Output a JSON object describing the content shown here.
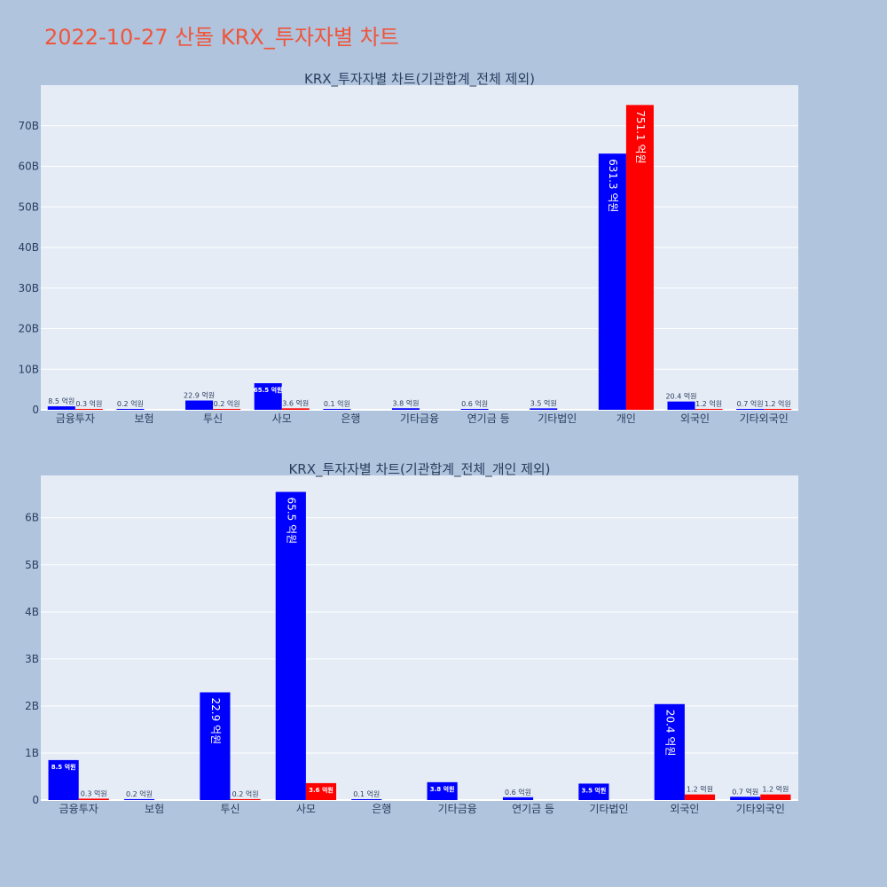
{
  "page": {
    "title": "2022-10-27 산돌 KRX_투자자별 차트"
  },
  "colors": {
    "background": "#b0c4de",
    "plot_bg": "#e5ecf6",
    "grid": "#ffffff",
    "title": "#ef553b",
    "text": "#2a3f5f",
    "series_buy": "#0000ff",
    "series_sell": "#ff0000"
  },
  "chart_data": [
    {
      "type": "bar",
      "title": "KRX_투자자별 차트(기관합계_전체 제외)",
      "categories": [
        "금융투자",
        "보험",
        "투신",
        "사모",
        "은행",
        "기타금융",
        "연기금 등",
        "기타법인",
        "개인",
        "외국인",
        "기타외국인"
      ],
      "ylim": [
        0,
        80000000000
      ],
      "yticks": [
        0,
        10000000000,
        20000000000,
        30000000000,
        40000000000,
        50000000000,
        60000000000,
        70000000000
      ],
      "ytick_labels": [
        "0",
        "10B",
        "20B",
        "30B",
        "40B",
        "50B",
        "60B",
        "70B"
      ],
      "series": [
        {
          "color": "#0000ff",
          "values": [
            850000000,
            20000000,
            2290000000,
            6550000000,
            10000000,
            380000000,
            60000000,
            350000000,
            63130000000,
            2040000000,
            70000000
          ],
          "labels": [
            "8.5 억원",
            "0.2 억원",
            "22.9 억원",
            "65.5 억원",
            "0.1 억원",
            "3.8 억원",
            "0.6 억원",
            "3.5 억원",
            "631.3 억원",
            "20.4 억원",
            "0.7 억원"
          ]
        },
        {
          "color": "#ff0000",
          "values": [
            30000000,
            0,
            20000000,
            360000000,
            0,
            0,
            0,
            0,
            75110000000,
            120000000,
            120000000
          ],
          "labels": [
            "0.3 억원",
            "",
            "0.2 억원",
            "3.6 억원",
            "",
            "",
            "",
            "",
            "751.1 억원",
            "1.2 억원",
            "1.2 억원"
          ]
        }
      ],
      "grid": true
    },
    {
      "type": "bar",
      "title": "KRX_투자자별 차트(기관합계_전체_개인 제외)",
      "categories": [
        "금융투자",
        "보험",
        "투신",
        "사모",
        "은행",
        "기타금융",
        "연기금 등",
        "기타법인",
        "외국인",
        "기타외국인"
      ],
      "ylim": [
        0,
        6900000000
      ],
      "yticks": [
        0,
        1000000000,
        2000000000,
        3000000000,
        4000000000,
        5000000000,
        6000000000
      ],
      "ytick_labels": [
        "0",
        "1B",
        "2B",
        "3B",
        "4B",
        "5B",
        "6B"
      ],
      "series": [
        {
          "color": "#0000ff",
          "values": [
            850000000,
            20000000,
            2290000000,
            6550000000,
            10000000,
            380000000,
            60000000,
            350000000,
            2040000000,
            70000000
          ],
          "labels": [
            "8.5 억원",
            "0.2 억원",
            "22.9 억원",
            "65.5 억원",
            "0.1 억원",
            "3.8 억원",
            "0.6 억원",
            "3.5 억원",
            "20.4 억원",
            "0.7 억원"
          ]
        },
        {
          "color": "#ff0000",
          "values": [
            30000000,
            0,
            20000000,
            360000000,
            0,
            0,
            0,
            0,
            120000000,
            120000000
          ],
          "labels": [
            "0.3 억원",
            "",
            "0.2 억원",
            "3.6 억원",
            "",
            "",
            "",
            "",
            "1.2 억원",
            "1.2 억원"
          ]
        }
      ],
      "grid": true
    }
  ]
}
